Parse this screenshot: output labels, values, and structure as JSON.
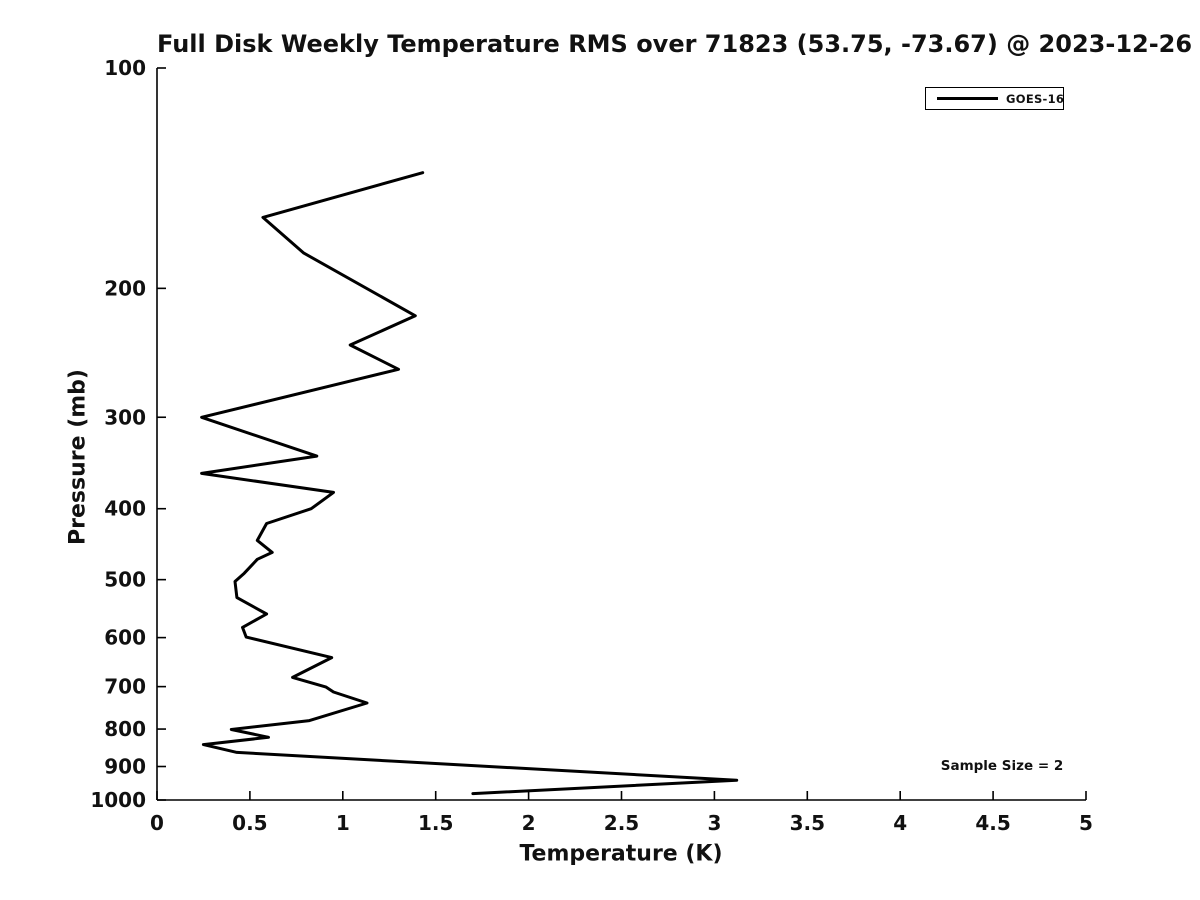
{
  "title": "Full Disk Weekly Temperature RMS over 71823 (53.75, -73.67) @ 2023-12-26",
  "axes": {
    "x_label": "Temperature (K)",
    "y_label": "Pressure (mb)",
    "x_tick_labels": [
      "0",
      "0.5",
      "1",
      "1.5",
      "2",
      "2.5",
      "3",
      "3.5",
      "4",
      "4.5",
      "5"
    ],
    "y_tick_labels": [
      "100",
      "200",
      "300",
      "400",
      "500",
      "600",
      "700",
      "800",
      "900",
      "1000"
    ]
  },
  "legend": {
    "entries": [
      {
        "label": "GOES-16",
        "color": "#000000"
      }
    ]
  },
  "annotation": "Sample Size = 2",
  "chart_data": {
    "type": "line",
    "title": "Full Disk Weekly Temperature RMS over 71823 (53.75, -73.67) @ 2023-12-26",
    "xlabel": "Temperature (K)",
    "ylabel": "Pressure (mb)",
    "xlim": [
      0,
      5
    ],
    "ylim": [
      100,
      1000
    ],
    "x_scale": "linear",
    "y_scale": "log",
    "y_inverted": true,
    "grid": false,
    "legend_position": "top-right",
    "annotation_text": "Sample Size = 2",
    "series": [
      {
        "name": "GOES-16",
        "color": "#000000",
        "points_format": [
          "temperature_rms_K",
          "pressure_mb"
        ],
        "points": [
          [
            1.43,
            139
          ],
          [
            0.57,
            160
          ],
          [
            0.79,
            179
          ],
          [
            1.39,
            218
          ],
          [
            1.04,
            239
          ],
          [
            1.3,
            258
          ],
          [
            0.24,
            300
          ],
          [
            0.86,
            339
          ],
          [
            0.24,
            358
          ],
          [
            0.95,
            380
          ],
          [
            0.83,
            400
          ],
          [
            0.59,
            419
          ],
          [
            0.54,
            442
          ],
          [
            0.62,
            459
          ],
          [
            0.54,
            469
          ],
          [
            0.47,
            490
          ],
          [
            0.42,
            503
          ],
          [
            0.43,
            529
          ],
          [
            0.59,
            557
          ],
          [
            0.46,
            581
          ],
          [
            0.48,
            599
          ],
          [
            0.94,
            639
          ],
          [
            0.73,
            680
          ],
          [
            0.91,
            701
          ],
          [
            0.95,
            712
          ],
          [
            1.13,
            737
          ],
          [
            0.82,
            779
          ],
          [
            0.4,
            801
          ],
          [
            0.6,
            821
          ],
          [
            0.25,
            840
          ],
          [
            0.43,
            861
          ],
          [
            3.12,
            940
          ],
          [
            1.7,
            980
          ]
        ]
      }
    ]
  }
}
